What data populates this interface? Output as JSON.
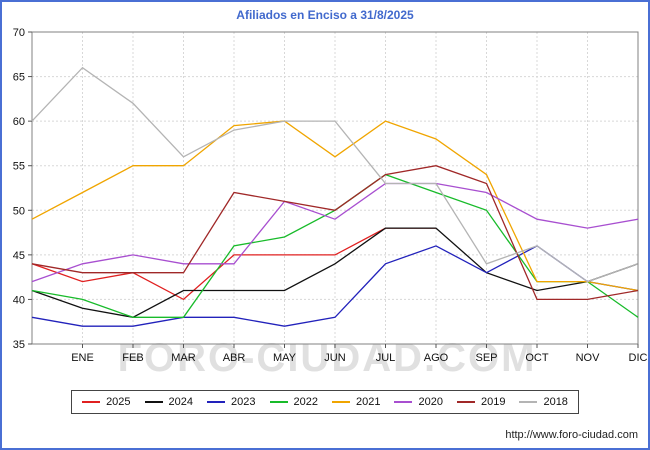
{
  "watermark": "FORO-CIUDAD.COM",
  "footer": {
    "url": "http://www.foro-ciudad.com"
  },
  "chart_data": {
    "type": "line",
    "title": "Afiliados en Enciso a 31/8/2025",
    "categories": [
      "",
      "ENE",
      "FEB",
      "MAR",
      "ABR",
      "MAY",
      "JUN",
      "JUL",
      "AGO",
      "SEP",
      "OCT",
      "NOV",
      "DIC"
    ],
    "ylim": [
      35,
      70
    ],
    "y_step": 5,
    "grid": true,
    "legend_position": "bottom",
    "series": [
      {
        "name": "2025",
        "color": "#e02020",
        "values": [
          44,
          42,
          43,
          40,
          45,
          45,
          45,
          48,
          48,
          null,
          null,
          null,
          null
        ]
      },
      {
        "name": "2024",
        "color": "#111111",
        "values": [
          41,
          39,
          38,
          41,
          41,
          41,
          44,
          48,
          48,
          43,
          41,
          42,
          44
        ]
      },
      {
        "name": "2023",
        "color": "#2222bb",
        "values": [
          38,
          37,
          37,
          38,
          38,
          37,
          38,
          44,
          46,
          43,
          46,
          42,
          41
        ]
      },
      {
        "name": "2022",
        "color": "#18bb2a",
        "values": [
          41,
          40,
          38,
          38,
          46,
          47,
          50,
          54,
          52,
          50,
          42,
          42,
          38
        ]
      },
      {
        "name": "2021",
        "color": "#f0a500",
        "values": [
          49,
          52,
          55,
          55,
          59.5,
          60,
          56,
          60,
          58,
          54,
          42,
          42,
          41
        ]
      },
      {
        "name": "2020",
        "color": "#a84fd0",
        "values": [
          42,
          44,
          45,
          44,
          44,
          51,
          49,
          53,
          53,
          52,
          49,
          48,
          49
        ]
      },
      {
        "name": "2019",
        "color": "#a02828",
        "values": [
          44,
          43,
          43,
          43,
          52,
          51,
          50,
          54,
          55,
          53,
          40,
          40,
          41
        ]
      },
      {
        "name": "2018",
        "color": "#b4b4b4",
        "values": [
          60,
          66,
          62,
          56,
          59,
          60,
          60,
          53,
          53,
          44,
          46,
          42,
          44
        ]
      }
    ]
  }
}
